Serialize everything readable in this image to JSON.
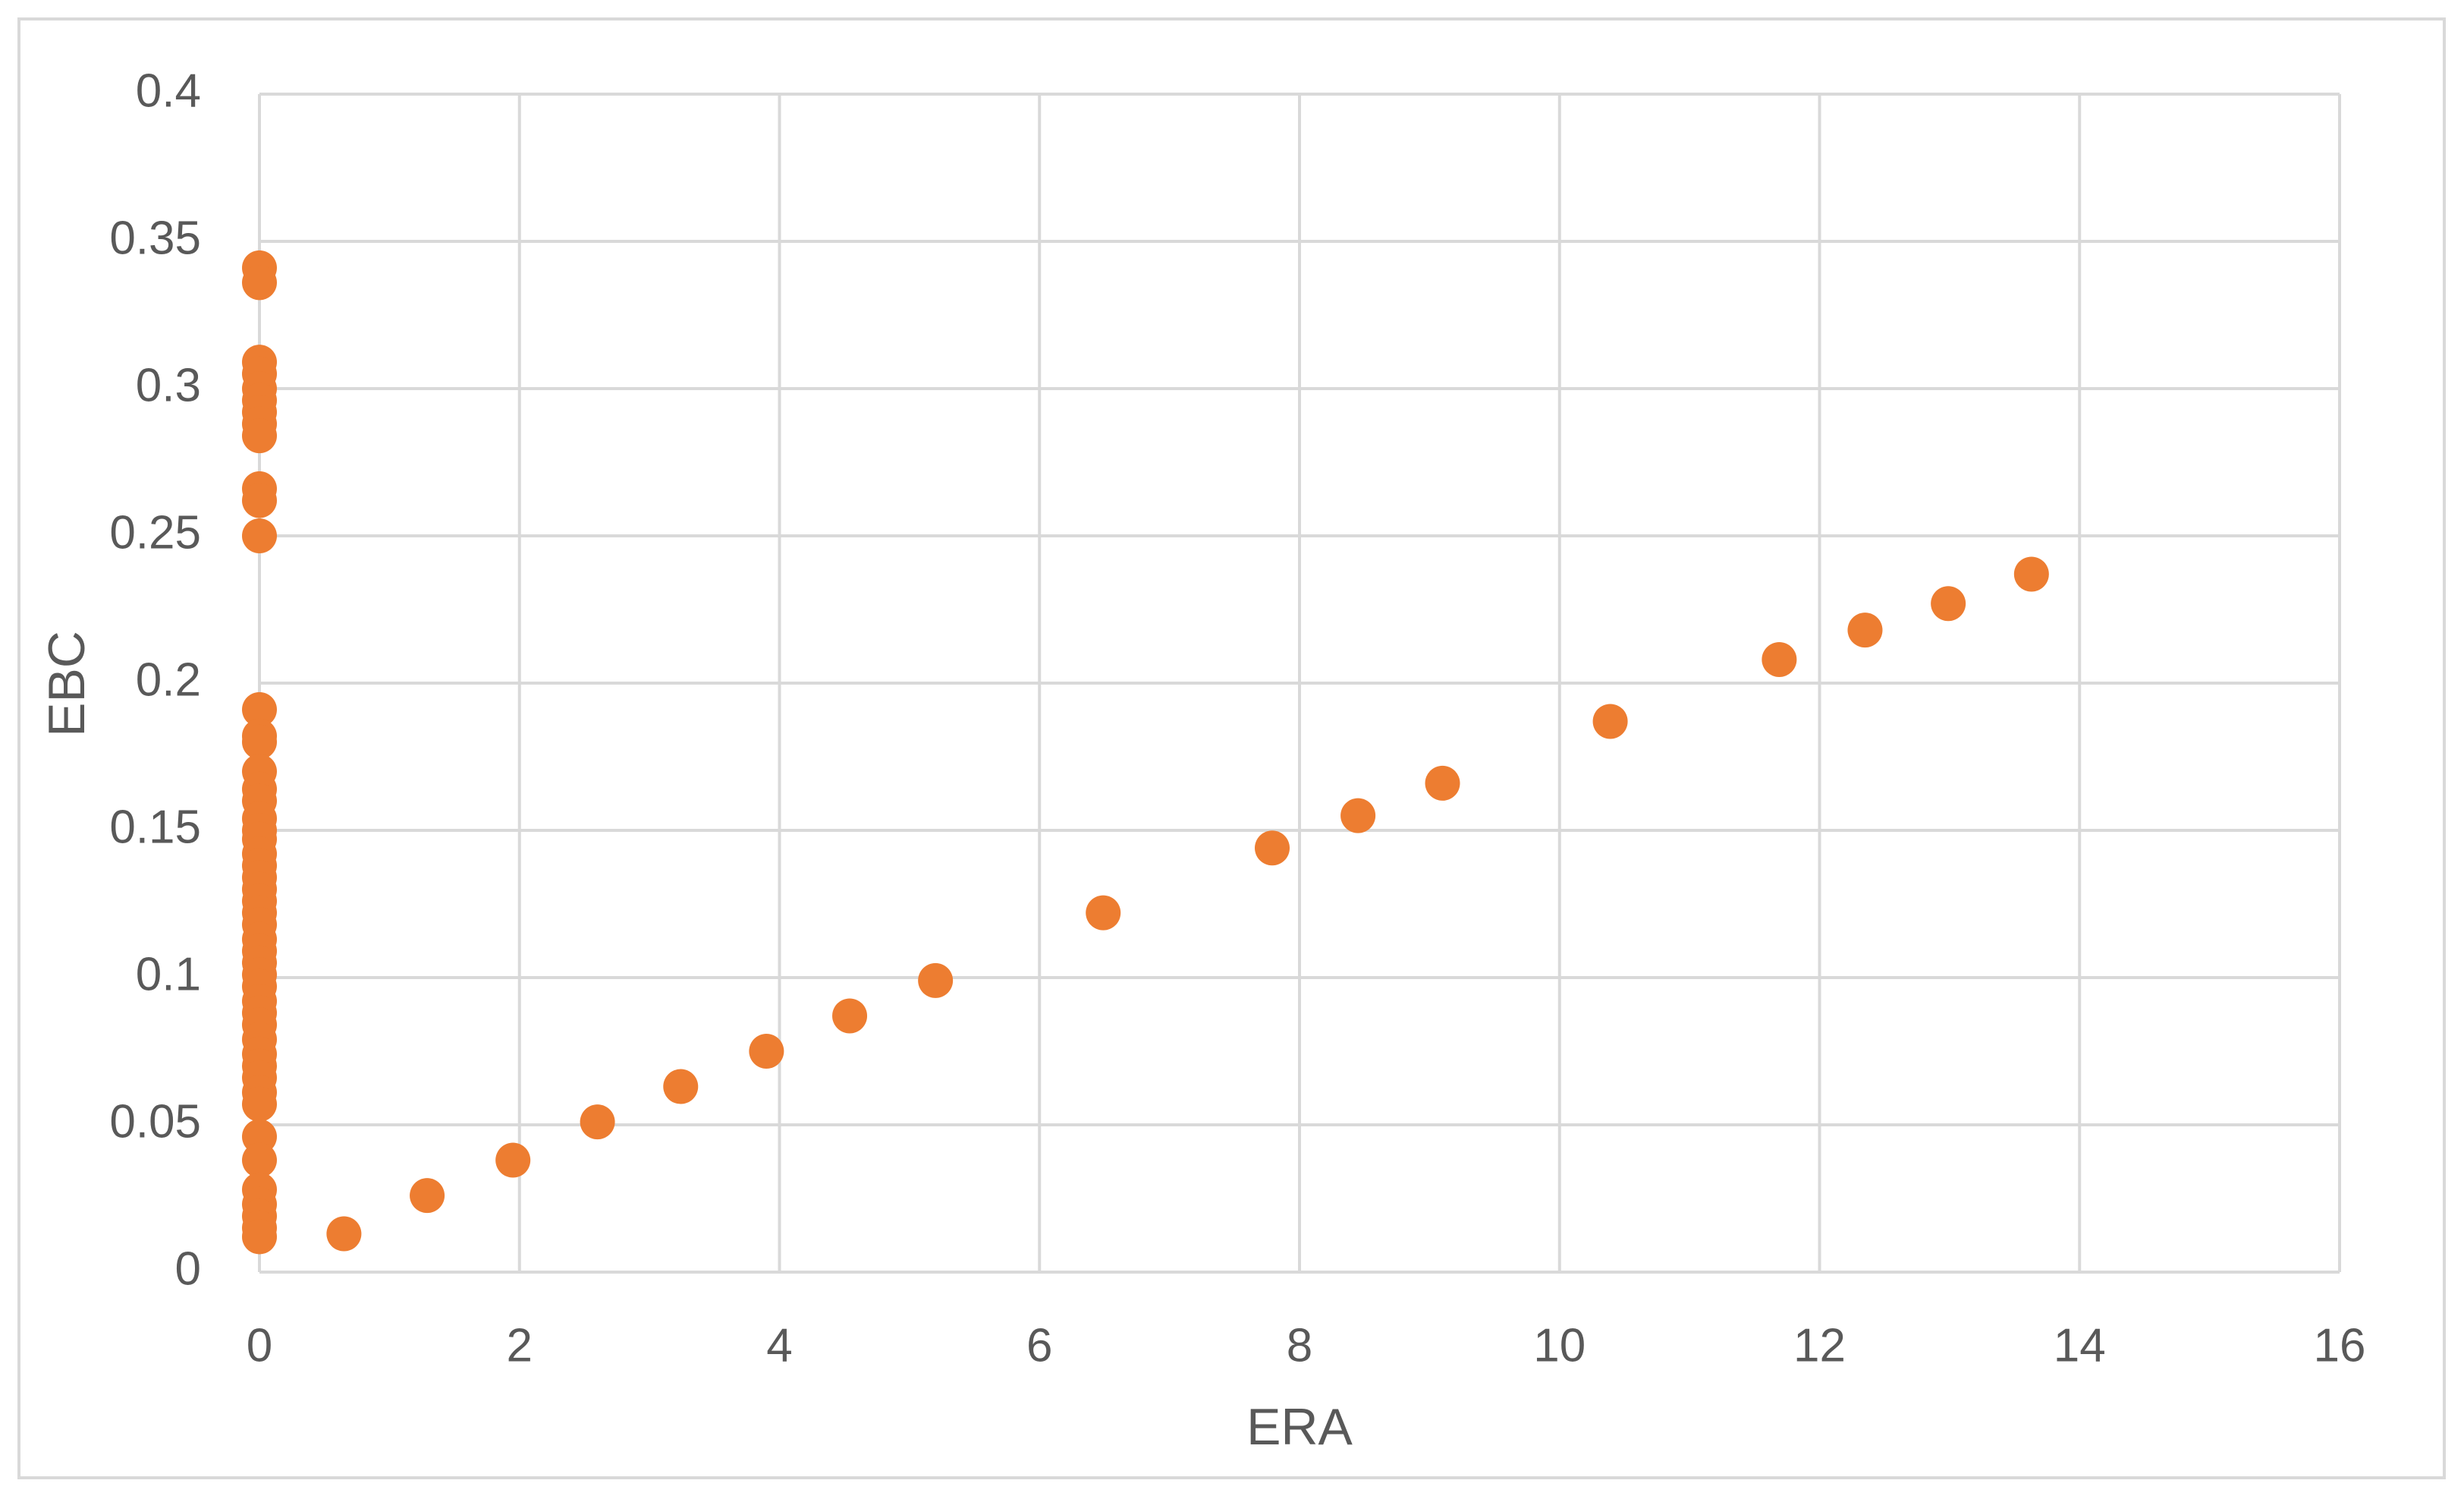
{
  "chart_data": {
    "type": "scatter",
    "x_label": "ERA",
    "y_label": "EBC",
    "xlim": [
      0,
      16
    ],
    "xticks": [
      0,
      2,
      4,
      6,
      8,
      10,
      12,
      14,
      16
    ],
    "ylim": [
      0,
      0.4
    ],
    "yticks": [
      0,
      0.05,
      0.1,
      0.15,
      0.2,
      0.25,
      0.3,
      0.35,
      0.4
    ],
    "grid": true,
    "series": [
      {
        "color": "#ed7d31",
        "x": [
          0,
          0,
          0,
          0,
          0,
          0,
          0,
          0,
          0,
          0,
          0,
          0,
          0,
          0,
          0,
          0,
          0,
          0,
          0,
          0,
          0,
          0,
          0,
          0,
          0,
          0,
          0,
          0,
          0,
          0,
          0,
          0,
          0,
          0,
          0,
          0,
          0,
          0,
          0,
          0,
          0,
          0,
          0,
          0,
          0,
          0,
          0,
          0,
          0,
          0.65,
          1.29,
          1.95,
          2.6,
          3.24,
          3.9,
          4.54,
          5.2,
          6.49,
          7.79,
          8.45,
          9.1,
          10.39,
          11.69,
          12.35,
          12.99,
          13.63
        ],
        "values": [
          0.341,
          0.336,
          0.309,
          0.305,
          0.3,
          0.296,
          0.292,
          0.288,
          0.284,
          0.266,
          0.262,
          0.25,
          0.191,
          0.182,
          0.18,
          0.17,
          0.164,
          0.16,
          0.154,
          0.15,
          0.147,
          0.142,
          0.138,
          0.134,
          0.13,
          0.126,
          0.122,
          0.118,
          0.113,
          0.109,
          0.105,
          0.101,
          0.097,
          0.092,
          0.088,
          0.084,
          0.079,
          0.074,
          0.07,
          0.066,
          0.061,
          0.057,
          0.046,
          0.038,
          0.028,
          0.023,
          0.019,
          0.015,
          0.012,
          0.013,
          0.026,
          0.038,
          0.051,
          0.063,
          0.075,
          0.087,
          0.099,
          0.122,
          0.144,
          0.155,
          0.166,
          0.187,
          0.208,
          0.218,
          0.227,
          0.237
        ]
      }
    ]
  }
}
